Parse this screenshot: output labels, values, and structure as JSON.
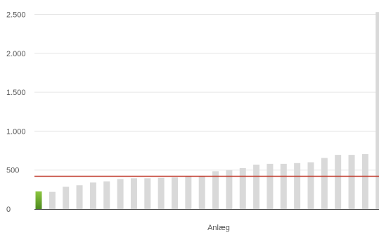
{
  "chart_data": {
    "type": "bar",
    "title": "",
    "xlabel": "Anlæg",
    "ylabel": "",
    "ylim": [
      0,
      2500
    ],
    "yticks": [
      0,
      500,
      1000,
      1500,
      2000,
      2500
    ],
    "ytick_labels": [
      "0",
      "500",
      "1.000",
      "1.500",
      "2.000",
      "2.500"
    ],
    "grid": true,
    "values": [
      225,
      220,
      285,
      305,
      340,
      355,
      385,
      395,
      395,
      400,
      405,
      415,
      420,
      485,
      500,
      525,
      570,
      580,
      580,
      590,
      600,
      655,
      695,
      695,
      705,
      2530
    ],
    "highlight_index": 0,
    "reference_line": 420,
    "colors": {
      "bar": "#d9d9d9",
      "highlight_top": "#8cc63f",
      "highlight_bottom": "#4d8a1f",
      "reference_line": "#c0392b",
      "grid": "#e6e6e6",
      "axis": "#333333"
    }
  }
}
